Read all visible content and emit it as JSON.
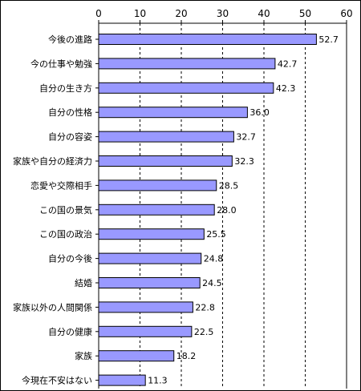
{
  "chart_data": {
    "type": "bar",
    "orientation": "horizontal",
    "categories": [
      "今後の進路",
      "今の仕事や勉強",
      "自分の生き方",
      "自分の性格",
      "自分の容姿",
      "家族や自分の経済力",
      "恋愛や交際相手",
      "この国の景気",
      "この国の政治",
      "自分の今後",
      "結婚",
      "家族以外の人間関係",
      "自分の健康",
      "家族",
      "今現在不安はない"
    ],
    "values": [
      52.7,
      42.7,
      42.3,
      36.0,
      32.7,
      32.3,
      28.5,
      28.0,
      25.5,
      24.8,
      24.5,
      22.8,
      22.5,
      18.2,
      11.3
    ],
    "value_labels": [
      "52.7",
      "42.7",
      "42.3",
      "36.0",
      "32.7",
      "32.3",
      "28.5",
      "28.0",
      "25.5",
      "24.8",
      "24.5",
      "22.8",
      "22.5",
      "18.2",
      "11.3"
    ],
    "xlim": [
      0,
      60
    ],
    "xticks": [
      0,
      10,
      20,
      30,
      40,
      50,
      60
    ],
    "xtick_labels": [
      "0",
      "10",
      "20",
      "30",
      "40",
      "50",
      "60"
    ],
    "x_axis_position": "top",
    "grid": "vertical dashed",
    "legend": "none",
    "title": "",
    "xlabel": "",
    "ylabel": "",
    "colors": {
      "bar_fill": "#9999ff",
      "bar_stroke": "#000000",
      "grid": "#000000",
      "frame": "#000000"
    }
  }
}
